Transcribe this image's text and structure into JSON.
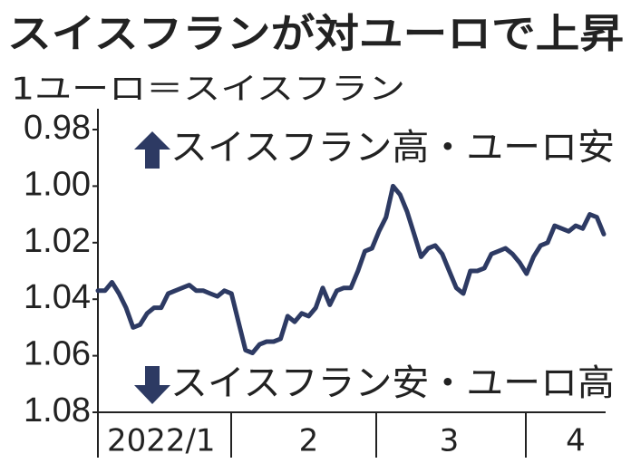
{
  "chart_data": {
    "type": "line",
    "title": "スイスフランが対ユーロで上昇",
    "subtitle": "1ユーロ＝スイスフラン",
    "annotations": [
      "スイスフラン高・ユーロ安",
      "スイスフラン安・ユーロ高"
    ],
    "categories": [
      null,
      null,
      null,
      null,
      null,
      null,
      null,
      null,
      null,
      "2022/1",
      null,
      null,
      null,
      null,
      null,
      null,
      null,
      null,
      null,
      null,
      null,
      null,
      null,
      null,
      null,
      null,
      null,
      null,
      null,
      null,
      "2",
      null,
      null,
      null,
      null,
      null,
      null,
      null,
      null,
      null,
      null,
      null,
      null,
      null,
      null,
      null,
      null,
      null,
      null,
      null,
      "3",
      null,
      null,
      null,
      null,
      null,
      null,
      null,
      null,
      null,
      null,
      null,
      null,
      null,
      null,
      null,
      null,
      null,
      "4",
      null,
      null,
      null,
      null
    ],
    "series": [
      {
        "color": "#2d3a63",
        "values": [
          1.037,
          1.037,
          1.034,
          1.038,
          1.043,
          1.05,
          1.049,
          1.045,
          1.043,
          1.043,
          1.038,
          1.037,
          1.036,
          1.035,
          1.037,
          1.037,
          1.038,
          1.039,
          1.037,
          1.038,
          1.048,
          1.058,
          1.059,
          1.056,
          1.055,
          1.055,
          1.054,
          1.046,
          1.048,
          1.045,
          1.046,
          1.043,
          1.036,
          1.042,
          1.037,
          1.036,
          1.036,
          1.03,
          1.023,
          1.022,
          1.016,
          1.011,
          1.0,
          1.003,
          1.009,
          1.017,
          1.025,
          1.022,
          1.021,
          1.024,
          1.03,
          1.036,
          1.038,
          1.03,
          1.03,
          1.029,
          1.024,
          1.023,
          1.022,
          1.024,
          1.027,
          1.031,
          1.025,
          1.021,
          1.02,
          1.014,
          1.015,
          1.016,
          1.014,
          1.015,
          1.01,
          1.011,
          1.017
        ]
      }
    ],
    "ylim": [
      0.98,
      1.08
    ],
    "y_inverted": true,
    "yticks": [
      0.98,
      {
        "value": 1,
        "label": "1.00"
      },
      1.02,
      1.04,
      1.06,
      1.08
    ],
    "grid": false
  }
}
